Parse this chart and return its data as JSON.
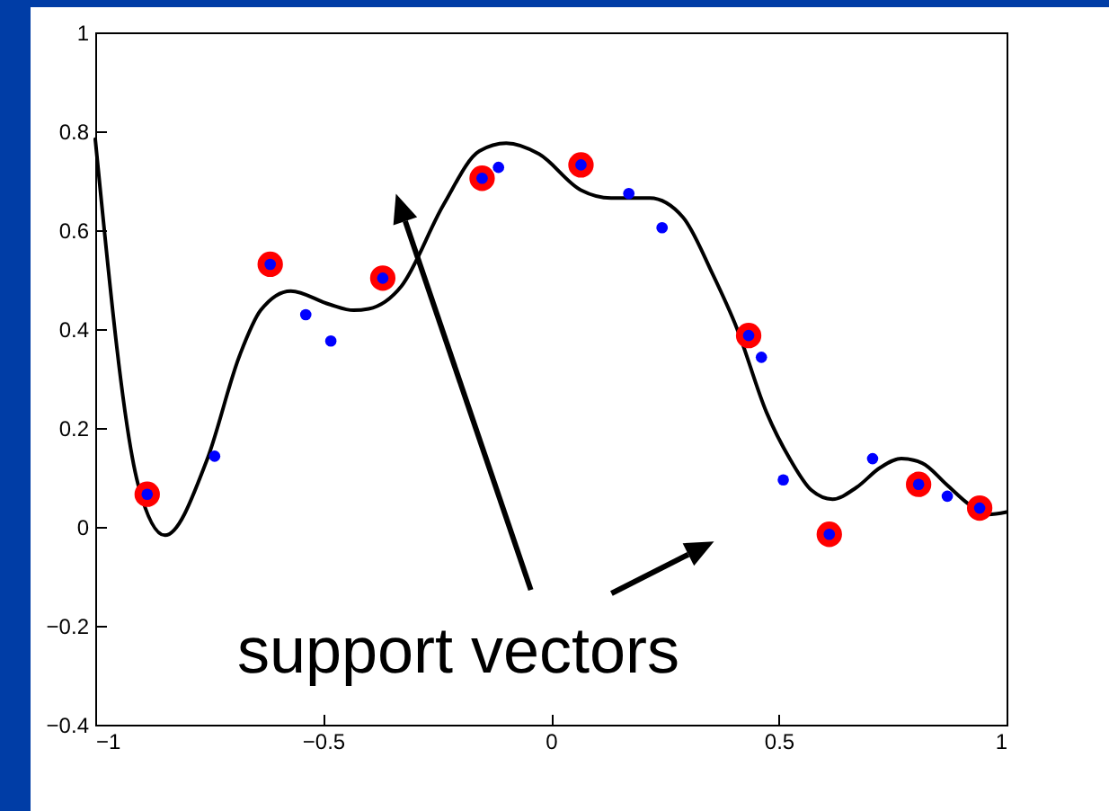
{
  "chart_data": {
    "type": "line",
    "xlim": [
      -1,
      1
    ],
    "ylim": [
      -0.4,
      1
    ],
    "xticks": [
      -1,
      -0.5,
      0,
      0.5,
      1
    ],
    "yticks": [
      -0.4,
      -0.2,
      0,
      0.2,
      0.4,
      0.6,
      0.8,
      1
    ],
    "grid": false,
    "annotations": [
      "support vectors"
    ],
    "series": [
      {
        "color": "#000000",
        "marker": "none",
        "x": [
          -1,
          -0.906,
          -0.847,
          -0.755,
          -0.683,
          -0.637,
          -0.571,
          -0.486,
          -0.433,
          -0.4,
          -0.328,
          -0.236,
          -0.157,
          -0.098,
          -0.026,
          0.066,
          0.132,
          0.217,
          0.29,
          0.355,
          0.408,
          0.473,
          0.526,
          0.572,
          0.618,
          0.671,
          0.723,
          0.769,
          0.815,
          0.868,
          0.92,
          0.96,
          1
        ],
        "values": [
          0.784,
          0.086,
          -0.017,
          0.135,
          0.347,
          0.438,
          0.477,
          0.45,
          0.438,
          0.441,
          0.487,
          0.651,
          0.76,
          0.776,
          0.754,
          0.681,
          0.665,
          0.665,
          0.626,
          0.511,
          0.402,
          0.232,
          0.135,
          0.074,
          0.056,
          0.08,
          0.12,
          0.138,
          0.129,
          0.086,
          0.044,
          0.025,
          0.03
        ]
      },
      {
        "type": "scatter",
        "marker": "circle",
        "color": "#ff0000",
        "x": [
          -0.886,
          -0.616,
          -0.369,
          -0.151,
          0.066,
          0.434,
          0.611,
          0.807,
          0.941
        ],
        "values": [
          0.066,
          0.531,
          0.503,
          0.705,
          0.732,
          0.387,
          -0.015,
          0.086,
          0.038
        ]
      },
      {
        "type": "scatter",
        "marker": "circle",
        "color": "#0000ff",
        "x": [
          -0.886,
          -0.738,
          -0.616,
          -0.538,
          -0.483,
          -0.369,
          -0.151,
          -0.115,
          0.066,
          0.171,
          0.244,
          0.434,
          0.462,
          0.51,
          0.611,
          0.706,
          0.807,
          0.87,
          0.941
        ],
        "values": [
          0.066,
          0.143,
          0.531,
          0.429,
          0.376,
          0.503,
          0.705,
          0.727,
          0.732,
          0.674,
          0.605,
          0.387,
          0.343,
          0.095,
          -0.015,
          0.138,
          0.086,
          0.062,
          0.038
        ]
      }
    ]
  }
}
